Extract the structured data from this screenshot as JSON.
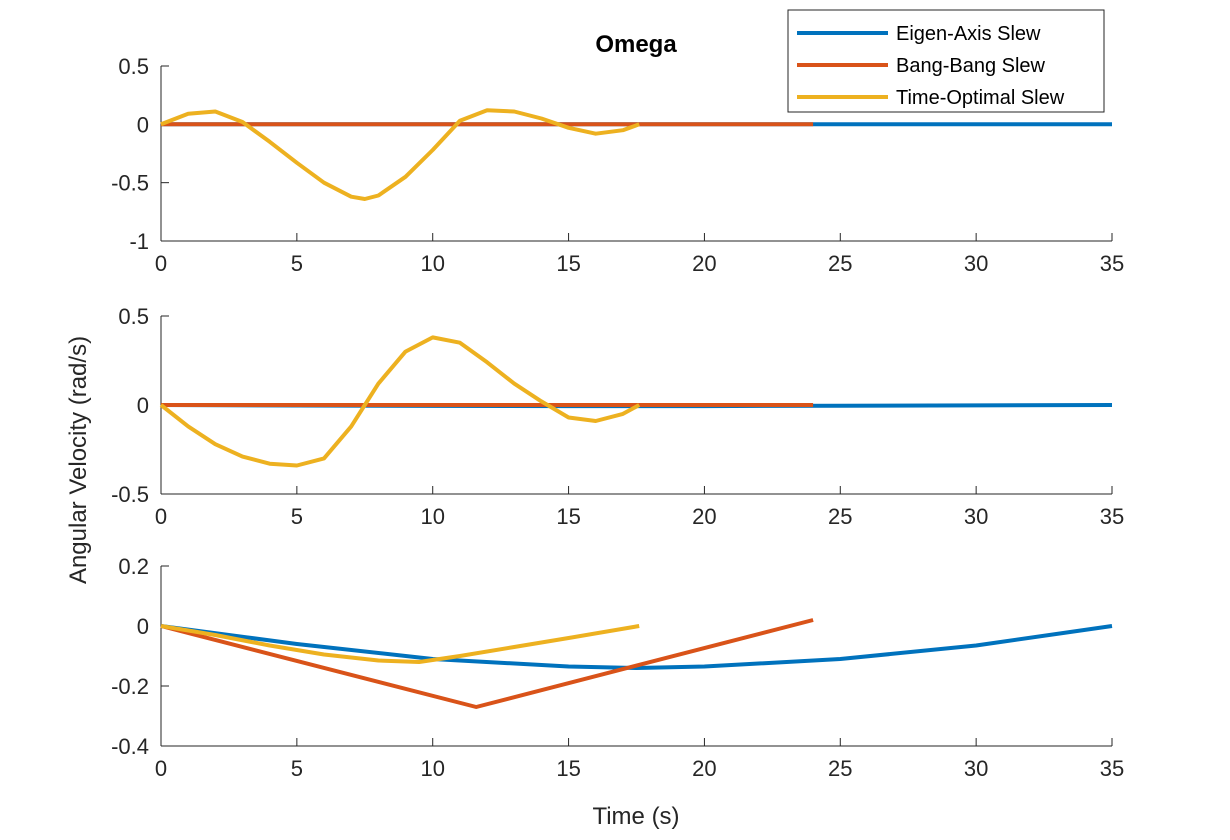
{
  "chart_data": {
    "type": "line",
    "title": "Omega",
    "xlabel": "Time (s)",
    "ylabel": "Angular Velocity (rad/s)",
    "grid": false,
    "legend": {
      "placement": "top-right",
      "entries": [
        "Eigen-Axis Slew",
        "Bang-Bang Slew",
        "Time-Optimal Slew"
      ]
    },
    "colors": {
      "Eigen-Axis Slew": "#0072BD",
      "Bang-Bang Slew": "#D95319",
      "Time-Optimal Slew": "#EDB120"
    },
    "subplots": [
      {
        "xlim": [
          0,
          35
        ],
        "ylim": [
          -1,
          0.5
        ],
        "xticks": [
          "0",
          "5",
          "10",
          "15",
          "20",
          "25",
          "30",
          "35"
        ],
        "yticks": [
          "0.5",
          "0",
          "-0.5",
          "-1"
        ],
        "series": [
          {
            "name": "Eigen-Axis Slew",
            "x": [
              0,
              35
            ],
            "y": [
              0,
              0
            ]
          },
          {
            "name": "Bang-Bang Slew",
            "x": [
              0,
              24
            ],
            "y": [
              0,
              0
            ]
          },
          {
            "name": "Time-Optimal Slew",
            "x": [
              0,
              1,
              2,
              3,
              4,
              5,
              6,
              7,
              7.5,
              8,
              9,
              10,
              11,
              12,
              13,
              14,
              15,
              16,
              17,
              17.6
            ],
            "y": [
              0,
              0.09,
              0.11,
              0.02,
              -0.15,
              -0.33,
              -0.5,
              -0.62,
              -0.64,
              -0.61,
              -0.45,
              -0.22,
              0.03,
              0.12,
              0.11,
              0.05,
              -0.03,
              -0.08,
              -0.05,
              0
            ]
          }
        ]
      },
      {
        "xlim": [
          0,
          35
        ],
        "ylim": [
          -0.5,
          0.5
        ],
        "xticks": [
          "0",
          "5",
          "10",
          "15",
          "20",
          "25",
          "30",
          "35"
        ],
        "yticks": [
          "0.5",
          "0",
          "-0.5"
        ],
        "series": [
          {
            "name": "Eigen-Axis Slew",
            "x": [
              0,
              5,
              10,
              15,
              20,
              25,
              30,
              35
            ],
            "y": [
              0,
              -0.003,
              -0.005,
              -0.006,
              -0.006,
              -0.004,
              -0.002,
              0
            ]
          },
          {
            "name": "Bang-Bang Slew",
            "x": [
              0,
              24
            ],
            "y": [
              0,
              0
            ]
          },
          {
            "name": "Time-Optimal Slew",
            "x": [
              0,
              1,
              2,
              3,
              4,
              5,
              6,
              7,
              8,
              9,
              10,
              11,
              12,
              13,
              14,
              15,
              16,
              17,
              17.6
            ],
            "y": [
              0,
              -0.12,
              -0.22,
              -0.29,
              -0.33,
              -0.34,
              -0.3,
              -0.12,
              0.12,
              0.3,
              0.38,
              0.35,
              0.24,
              0.12,
              0.02,
              -0.07,
              -0.09,
              -0.05,
              0
            ]
          }
        ]
      },
      {
        "xlim": [
          0,
          35
        ],
        "ylim": [
          -0.4,
          0.2
        ],
        "xticks": [
          "0",
          "5",
          "10",
          "15",
          "20",
          "25",
          "30",
          "35"
        ],
        "yticks": [
          "0.2",
          "0",
          "-0.2",
          "-0.4"
        ],
        "series": [
          {
            "name": "Eigen-Axis Slew",
            "x": [
              0,
              5,
              10,
              15,
              17.5,
              20,
              25,
              30,
              35
            ],
            "y": [
              0,
              -0.06,
              -0.11,
              -0.135,
              -0.14,
              -0.135,
              -0.11,
              -0.065,
              0
            ]
          },
          {
            "name": "Bang-Bang Slew",
            "x": [
              0,
              11.6,
              24
            ],
            "y": [
              0,
              -0.27,
              0.02
            ]
          },
          {
            "name": "Time-Optimal Slew",
            "x": [
              0,
              2,
              4,
              6,
              8,
              9.5,
              11,
              13,
              15,
              17.6
            ],
            "y": [
              0,
              -0.03,
              -0.065,
              -0.095,
              -0.115,
              -0.12,
              -0.1,
              -0.07,
              -0.04,
              0
            ]
          }
        ]
      }
    ]
  }
}
